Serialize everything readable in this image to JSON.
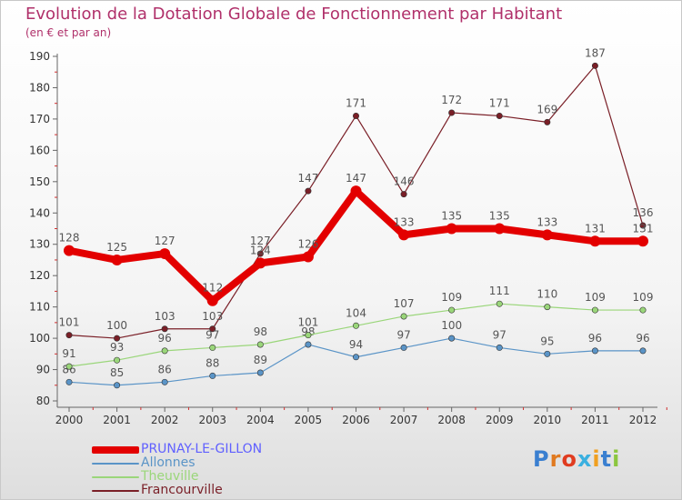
{
  "header": {
    "title": "Evolution de la Dotation Globale de Fonctionnement par Habitant",
    "subtitle": "(en € et par an)"
  },
  "logo": {
    "text": "Proxiti"
  },
  "chart_data": {
    "type": "line",
    "title": "Evolution de la Dotation Globale de Fonctionnement par Habitant",
    "subtitle": "(en € et par an)",
    "xlabel": "",
    "ylabel": "",
    "ylim": [
      80,
      190
    ],
    "y_ticks": [
      "80",
      "90",
      "100",
      "110",
      "120",
      "130",
      "140",
      "150",
      "160",
      "170",
      "180",
      "190"
    ],
    "categories": [
      "2000",
      "2001",
      "2002",
      "2003",
      "2004",
      "2005",
      "2006",
      "2007",
      "2008",
      "2009",
      "2010",
      "2011",
      "2012"
    ],
    "grid": false,
    "legend_position": "bottom-left",
    "series": [
      {
        "name": "Francourville",
        "color": "#7a1f27",
        "label_color": "#7a1f27",
        "values": [
          101,
          100,
          103,
          103,
          127,
          147,
          171,
          146,
          172,
          171,
          169,
          187,
          136
        ]
      },
      {
        "name": "Allonnes",
        "color": "#5a94c7",
        "label_color": "#5a94c7",
        "values": [
          86,
          85,
          86,
          88,
          89,
          98,
          94,
          97,
          100,
          97,
          95,
          96,
          96
        ]
      },
      {
        "name": "Theuville",
        "color": "#9ad67a",
        "label_color": "#9ad67a",
        "values": [
          91,
          93,
          96,
          97,
          98,
          101,
          104,
          107,
          109,
          111,
          110,
          109,
          109
        ]
      },
      {
        "name": "PRUNAY-LE-GILLON",
        "color": "#e30000",
        "label_color": "#6060ff",
        "values": [
          128,
          125,
          127,
          112,
          124,
          126,
          147,
          133,
          135,
          135,
          133,
          131,
          131
        ]
      }
    ]
  }
}
